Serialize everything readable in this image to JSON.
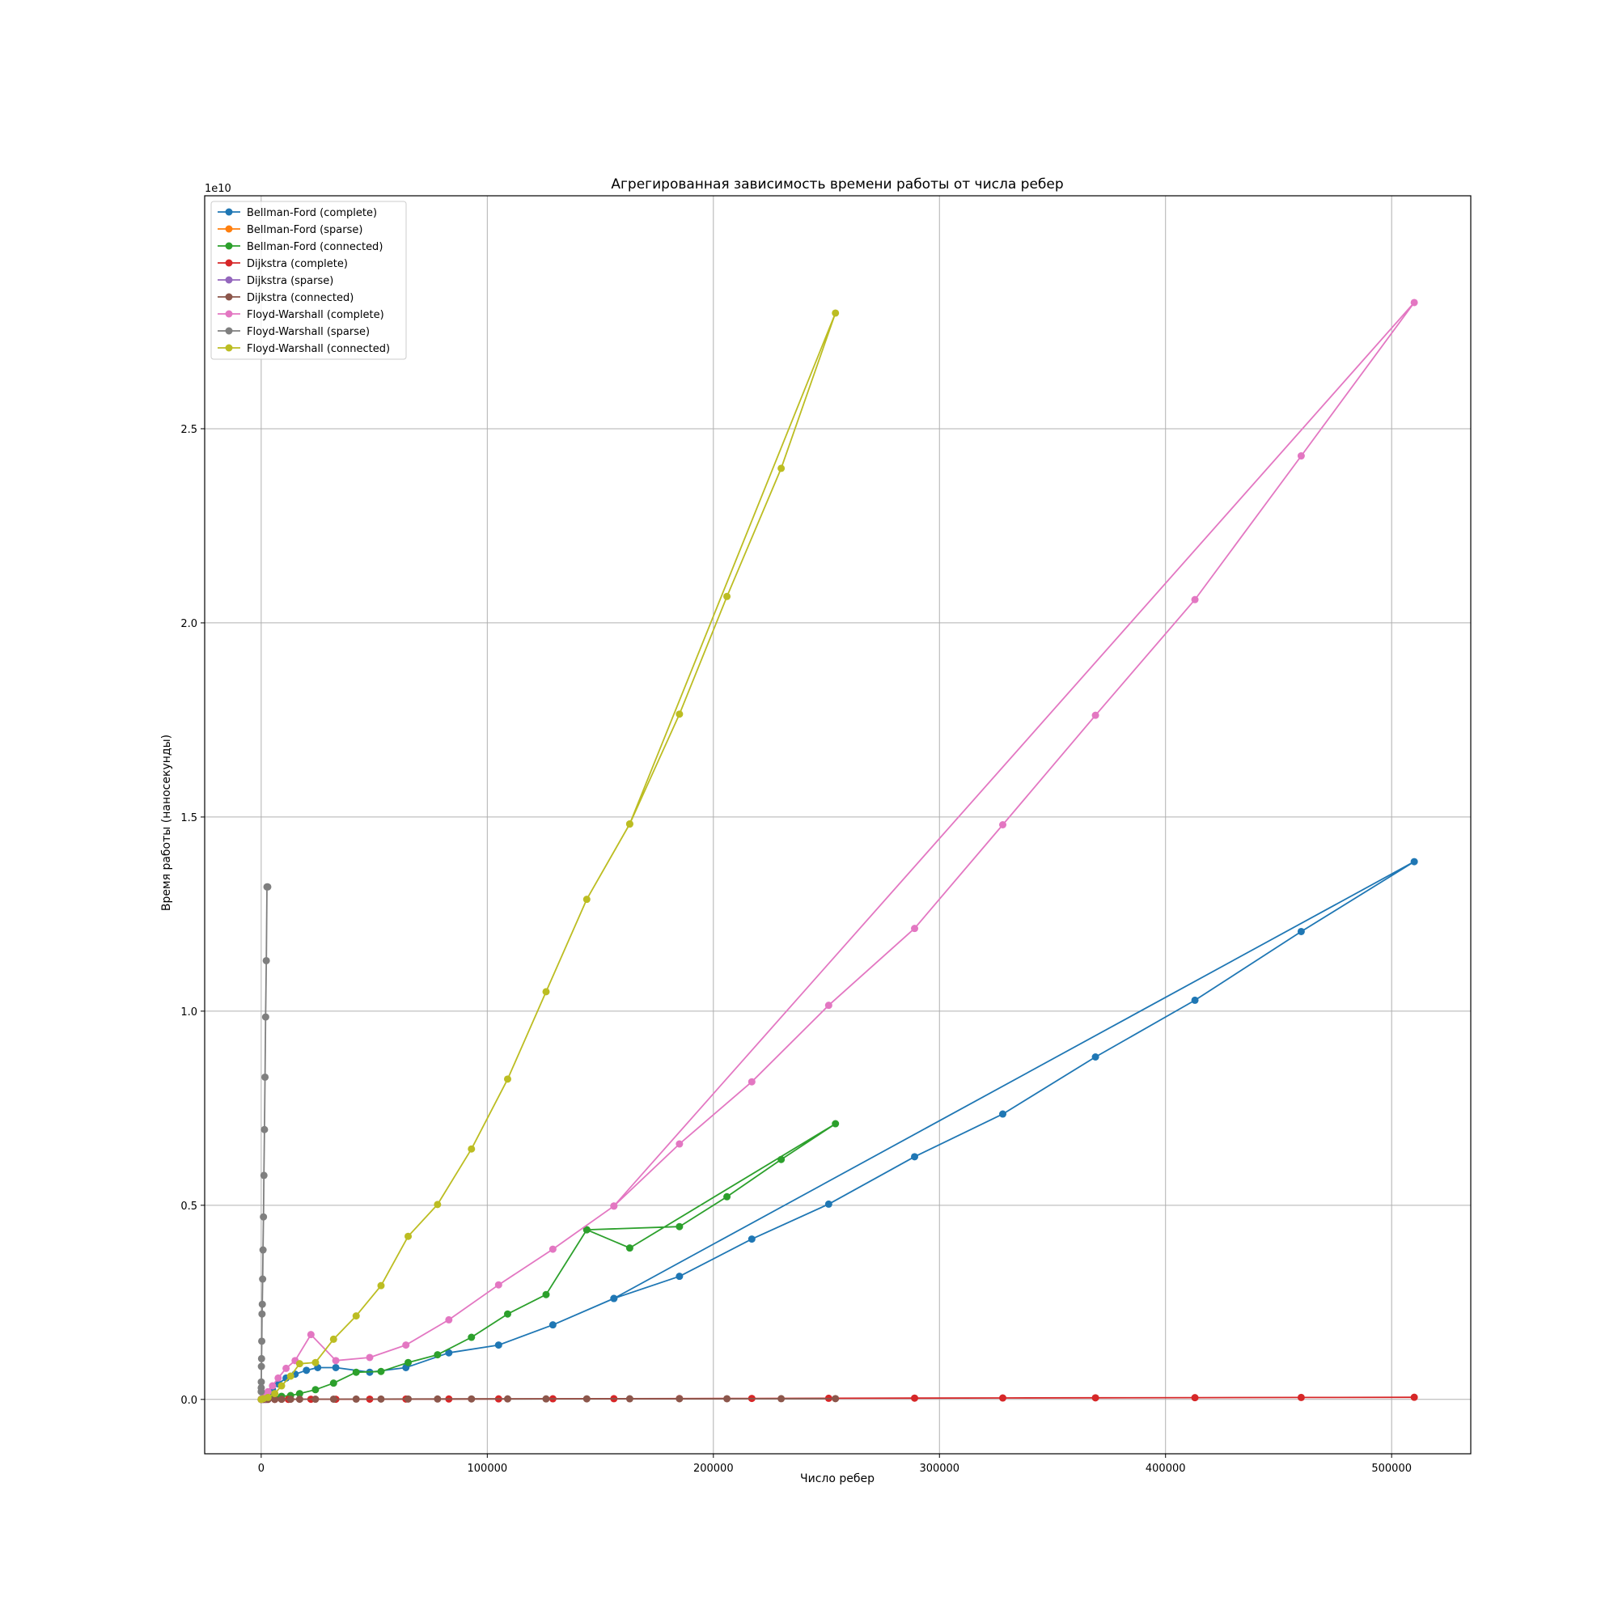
{
  "chart_data": {
    "type": "line",
    "title": "Агрегированная зависимость времени работы от числа ребер",
    "xlabel": "Число ребер",
    "ylabel": "Время работы (наносекунды)",
    "y_offset_label": "1e10",
    "xlim": [
      -25000,
      535000
    ],
    "ylim": [
      -1400000000.0,
      31000000000.0
    ],
    "x_ticks": [
      0,
      100000,
      200000,
      300000,
      400000,
      500000
    ],
    "x_tick_labels": [
      "0",
      "100000",
      "200000",
      "300000",
      "400000",
      "500000"
    ],
    "y_ticks": [
      0,
      5000000000.0,
      10000000000.0,
      15000000000.0,
      20000000000.0,
      25000000000.0
    ],
    "y_tick_labels": [
      "0.0",
      "0.5",
      "1.0",
      "1.5",
      "2.0",
      "2.5"
    ],
    "grid": true,
    "legend_position": "top-left",
    "series": [
      {
        "name": "Bellman-Ford (complete)",
        "color": "#1f77b4",
        "x": [
          0,
          500,
          1500,
          3000,
          5000,
          7500,
          11000,
          15000,
          20000,
          25000,
          33000,
          48000,
          64000,
          83000,
          105000,
          129000,
          156000,
          510000,
          460000,
          413000,
          369000,
          328000,
          289000,
          251000,
          217000,
          185000,
          156000
        ],
        "y": [
          0,
          30000000.0,
          80000000.0,
          150000000.0,
          250000000.0,
          400000000.0,
          550000000.0,
          650000000.0,
          750000000.0,
          820000000.0,
          820000000.0,
          700000000.0,
          820000000.0,
          1200000000.0,
          1400000000.0,
          1920000000.0,
          2600000000.0,
          13850000000.0,
          12050000000.0,
          10280000000.0,
          8820000000.0,
          7350000000.0,
          6250000000.0,
          5030000000.0,
          4130000000.0,
          3170000000.0,
          2600000000.0
        ]
      },
      {
        "name": "Bellman-Ford (sparse)",
        "color": "#ff7f0e",
        "x": [
          0,
          500,
          1000,
          1500,
          2000,
          2500,
          3000
        ],
        "y": [
          0,
          10000000.0,
          20000000.0,
          30000000.0,
          40000000.0,
          50000000.0,
          60000000.0
        ]
      },
      {
        "name": "Bellman-Ford (connected)",
        "color": "#2ca02c",
        "x": [
          0,
          1000,
          3000,
          6000,
          9000,
          13000,
          17000,
          24000,
          32000,
          42000,
          53000,
          65000,
          78000,
          93000,
          109000,
          126000,
          144000,
          163000,
          254000,
          230000,
          206000,
          185000,
          144000
        ],
        "y": [
          0,
          10000000.0,
          30000000.0,
          50000000.0,
          80000000.0,
          100000000.0,
          150000000.0,
          250000000.0,
          420000000.0,
          700000000.0,
          720000000.0,
          950000000.0,
          1150000000.0,
          1600000000.0,
          2200000000.0,
          2700000000.0,
          4370000000.0,
          3900000000.0,
          7100000000.0,
          6180000000.0,
          5220000000.0,
          4450000000.0,
          4370000000.0
        ]
      },
      {
        "name": "Dijkstra (complete)",
        "color": "#d62728",
        "x": [
          0,
          2000,
          6000,
          12000,
          22000,
          33000,
          48000,
          64000,
          83000,
          105000,
          129000,
          156000,
          185000,
          217000,
          251000,
          289000,
          328000,
          369000,
          413000,
          460000,
          510000
        ],
        "y": [
          0,
          0,
          1000000.0,
          2000000.0,
          4000000.0,
          5000000.0,
          7000000.0,
          9000000.0,
          11000000.0,
          13000000.0,
          16000000.0,
          19000000.0,
          22000000.0,
          25000000.0,
          29000000.0,
          33000000.0,
          37000000.0,
          41000000.0,
          45000000.0,
          50000000.0,
          55000000.0
        ]
      },
      {
        "name": "Dijkstra (sparse)",
        "color": "#9467bd",
        "x": [
          0,
          500,
          1000,
          1500,
          2000,
          2500,
          3000
        ],
        "y": [
          0,
          0,
          1000000.0,
          1000000.0,
          2000000.0,
          2000000.0,
          3000000.0
        ]
      },
      {
        "name": "Dijkstra (connected)",
        "color": "#8c564b",
        "x": [
          0,
          1000,
          3000,
          6000,
          9000,
          13000,
          17000,
          24000,
          32000,
          42000,
          53000,
          65000,
          78000,
          93000,
          109000,
          126000,
          144000,
          163000,
          185000,
          206000,
          230000,
          254000
        ],
        "y": [
          0,
          0,
          1000000.0,
          2000000.0,
          3000000.0,
          4000000.0,
          5000000.0,
          6000000.0,
          7000000.0,
          8000000.0,
          9000000.0,
          10000000.0,
          11000000.0,
          12000000.0,
          13000000.0,
          14000000.0,
          15000000.0,
          16000000.0,
          17000000.0,
          18000000.0,
          19000000.0,
          20000000.0
        ]
      },
      {
        "name": "Floyd-Warshall (complete)",
        "color": "#e377c2",
        "x": [
          0,
          500,
          1500,
          3000,
          5000,
          7500,
          11000,
          15000,
          22000,
          33000,
          48000,
          64000,
          83000,
          105000,
          129000,
          156000,
          510000,
          460000,
          413000,
          369000,
          328000,
          289000,
          251000,
          217000,
          185000,
          156000
        ],
        "y": [
          0,
          30000000.0,
          100000000.0,
          200000000.0,
          350000000.0,
          550000000.0,
          800000000.0,
          1000000000.0,
          1670000000.0,
          1000000000.0,
          1080000000.0,
          1400000000.0,
          2050000000.0,
          2950000000.0,
          3870000000.0,
          4980000000.0,
          28250000000.0,
          24300000000.0,
          20600000000.0,
          17620000000.0,
          14800000000.0,
          12130000000.0,
          10150000000.0,
          8180000000.0,
          6580000000.0,
          4980000000.0
        ]
      },
      {
        "name": "Floyd-Warshall (sparse)",
        "color": "#7f7f7f",
        "x": [
          0,
          10,
          40,
          90,
          160,
          250,
          360,
          490,
          640,
          810,
          1000,
          1210,
          1440,
          1690,
          1960,
          2250,
          2560,
          2890
        ],
        "y": [
          200000000.0,
          300000000.0,
          450000000.0,
          850000000.0,
          1050000000.0,
          1500000000.0,
          2200000000.0,
          2450000000.0,
          3100000000.0,
          3850000000.0,
          4700000000.0,
          5770000000.0,
          6950000000.0,
          8300000000.0,
          9850000000.0,
          11300000000.0,
          13200000000.0,
          13200000000.0
        ]
      },
      {
        "name": "Floyd-Warshall (connected)",
        "color": "#bcbd22",
        "x": [
          0,
          1000,
          3000,
          6000,
          9000,
          13000,
          17000,
          24000,
          32000,
          42000,
          53000,
          65000,
          78000,
          93000,
          109000,
          126000,
          144000,
          163000,
          254000,
          230000,
          206000,
          185000,
          163000
        ],
        "y": [
          0,
          20000000.0,
          50000000.0,
          150000000.0,
          350000000.0,
          600000000.0,
          920000000.0,
          950000000.0,
          1550000000.0,
          2150000000.0,
          2930000000.0,
          4200000000.0,
          5020000000.0,
          6450000000.0,
          8250000000.0,
          10500000000.0,
          12880000000.0,
          14820000000.0,
          27980000000.0,
          23980000000.0,
          20680000000.0,
          17650000000.0,
          14820000000.0
        ]
      }
    ]
  }
}
